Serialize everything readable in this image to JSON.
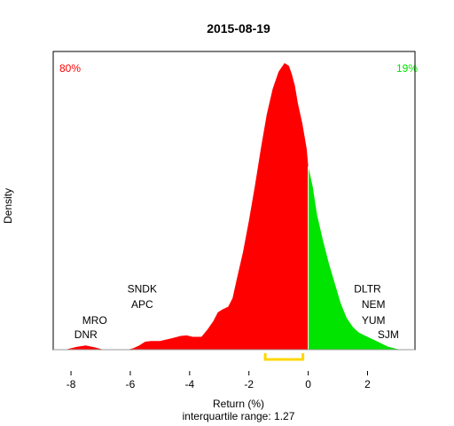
{
  "chart_data": {
    "type": "area",
    "title": "2015-08-19",
    "xlabel": "Return (%)",
    "ylabel": "Density",
    "subtitle": "interquartile range: 1.27",
    "xlim": [
      -8.6,
      3.6
    ],
    "ylim": [
      0,
      1
    ],
    "x_ticks": [
      -8,
      -6,
      -4,
      -2,
      0,
      2
    ],
    "neg_share_label": "80%",
    "pos_share_label": "19%",
    "neg_color": "#ff0000",
    "pos_color": "#00e400",
    "iqr_color": "#ffd700",
    "iqr_range": [
      -1.45,
      -0.18
    ],
    "split_at": 0,
    "grid": false,
    "density": {
      "x": [
        -8.2,
        -7.8,
        -7.5,
        -7.2,
        -6.9,
        -6.6,
        -6.3,
        -6.1,
        -5.9,
        -5.7,
        -5.5,
        -5.3,
        -5.0,
        -4.6,
        -4.3,
        -4.1,
        -3.9,
        -3.6,
        -3.4,
        -3.2,
        -3.05,
        -2.9,
        -2.7,
        -2.55,
        -2.4,
        -2.2,
        -2.0,
        -1.8,
        -1.6,
        -1.4,
        -1.2,
        -1.0,
        -0.8,
        -0.65,
        -0.55,
        -0.45,
        -0.35,
        -0.2,
        -0.05,
        0.0,
        0.15,
        0.3,
        0.5,
        0.7,
        0.9,
        1.1,
        1.3,
        1.5,
        1.7,
        1.9,
        2.1,
        2.3,
        2.5,
        2.7,
        2.9,
        3.1
      ],
      "y": [
        0.0,
        0.01,
        0.015,
        0.008,
        0.0,
        0.0,
        0.0,
        0.0,
        0.005,
        0.015,
        0.028,
        0.03,
        0.03,
        0.04,
        0.048,
        0.05,
        0.045,
        0.045,
        0.07,
        0.1,
        0.13,
        0.14,
        0.15,
        0.18,
        0.25,
        0.34,
        0.45,
        0.57,
        0.7,
        0.82,
        0.91,
        0.97,
        1.0,
        0.99,
        0.96,
        0.92,
        0.86,
        0.79,
        0.7,
        0.64,
        0.57,
        0.47,
        0.38,
        0.3,
        0.23,
        0.16,
        0.11,
        0.08,
        0.06,
        0.05,
        0.04,
        0.03,
        0.02,
        0.01,
        0.005,
        0.0
      ]
    },
    "annotations": [
      {
        "text": "SNDK",
        "x": -5.6,
        "y": 0.2
      },
      {
        "text": "APC",
        "x": -5.6,
        "y": 0.145
      },
      {
        "text": "MRO",
        "x": -7.2,
        "y": 0.09
      },
      {
        "text": "DNR",
        "x": -7.5,
        "y": 0.04
      },
      {
        "text": "DLTR",
        "x": 2.0,
        "y": 0.2
      },
      {
        "text": "NEM",
        "x": 2.2,
        "y": 0.145
      },
      {
        "text": "YUM",
        "x": 2.2,
        "y": 0.09
      },
      {
        "text": "SJM",
        "x": 2.7,
        "y": 0.04
      }
    ]
  }
}
